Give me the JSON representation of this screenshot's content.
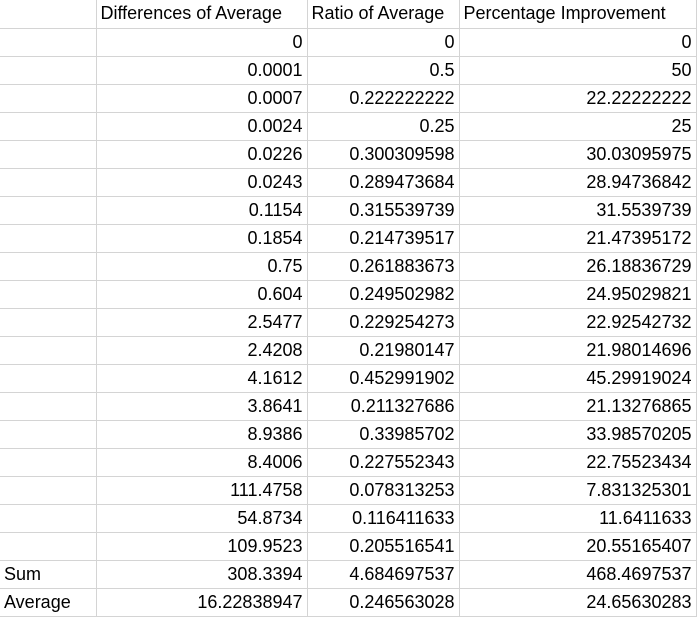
{
  "headers": [
    "",
    "Differences of Average",
    "Ratio of Average",
    "Percentage Improvement"
  ],
  "rows": [
    [
      "",
      "0",
      "0",
      "0"
    ],
    [
      "",
      "0.0001",
      "0.5",
      "50"
    ],
    [
      "",
      "0.0007",
      "0.222222222",
      "22.22222222"
    ],
    [
      "",
      "0.0024",
      "0.25",
      "25"
    ],
    [
      "",
      "0.0226",
      "0.300309598",
      "30.03095975"
    ],
    [
      "",
      "0.0243",
      "0.289473684",
      "28.94736842"
    ],
    [
      "",
      "0.1154",
      "0.315539739",
      "31.5539739"
    ],
    [
      "",
      "0.1854",
      "0.214739517",
      "21.47395172"
    ],
    [
      "",
      "0.75",
      "0.261883673",
      "26.18836729"
    ],
    [
      "",
      "0.604",
      "0.249502982",
      "24.95029821"
    ],
    [
      "",
      "2.5477",
      "0.229254273",
      "22.92542732"
    ],
    [
      "",
      "2.4208",
      "0.21980147",
      "21.98014696"
    ],
    [
      "",
      "4.1612",
      "0.452991902",
      "45.29919024"
    ],
    [
      "",
      "3.8641",
      "0.211327686",
      "21.13276865"
    ],
    [
      "",
      "8.9386",
      "0.33985702",
      "33.98570205"
    ],
    [
      "",
      "8.4006",
      "0.227552343",
      "22.75523434"
    ],
    [
      "",
      "111.4758",
      "0.078313253",
      "7.831325301"
    ],
    [
      "",
      "54.8734",
      "0.116411633",
      "11.6411633"
    ],
    [
      "",
      "109.9523",
      "0.205516541",
      "20.55165407"
    ],
    [
      "Sum",
      "308.3394",
      "4.684697537",
      "468.4697537"
    ],
    [
      "Average",
      "16.22838947",
      "0.246563028",
      "24.65630283"
    ]
  ]
}
